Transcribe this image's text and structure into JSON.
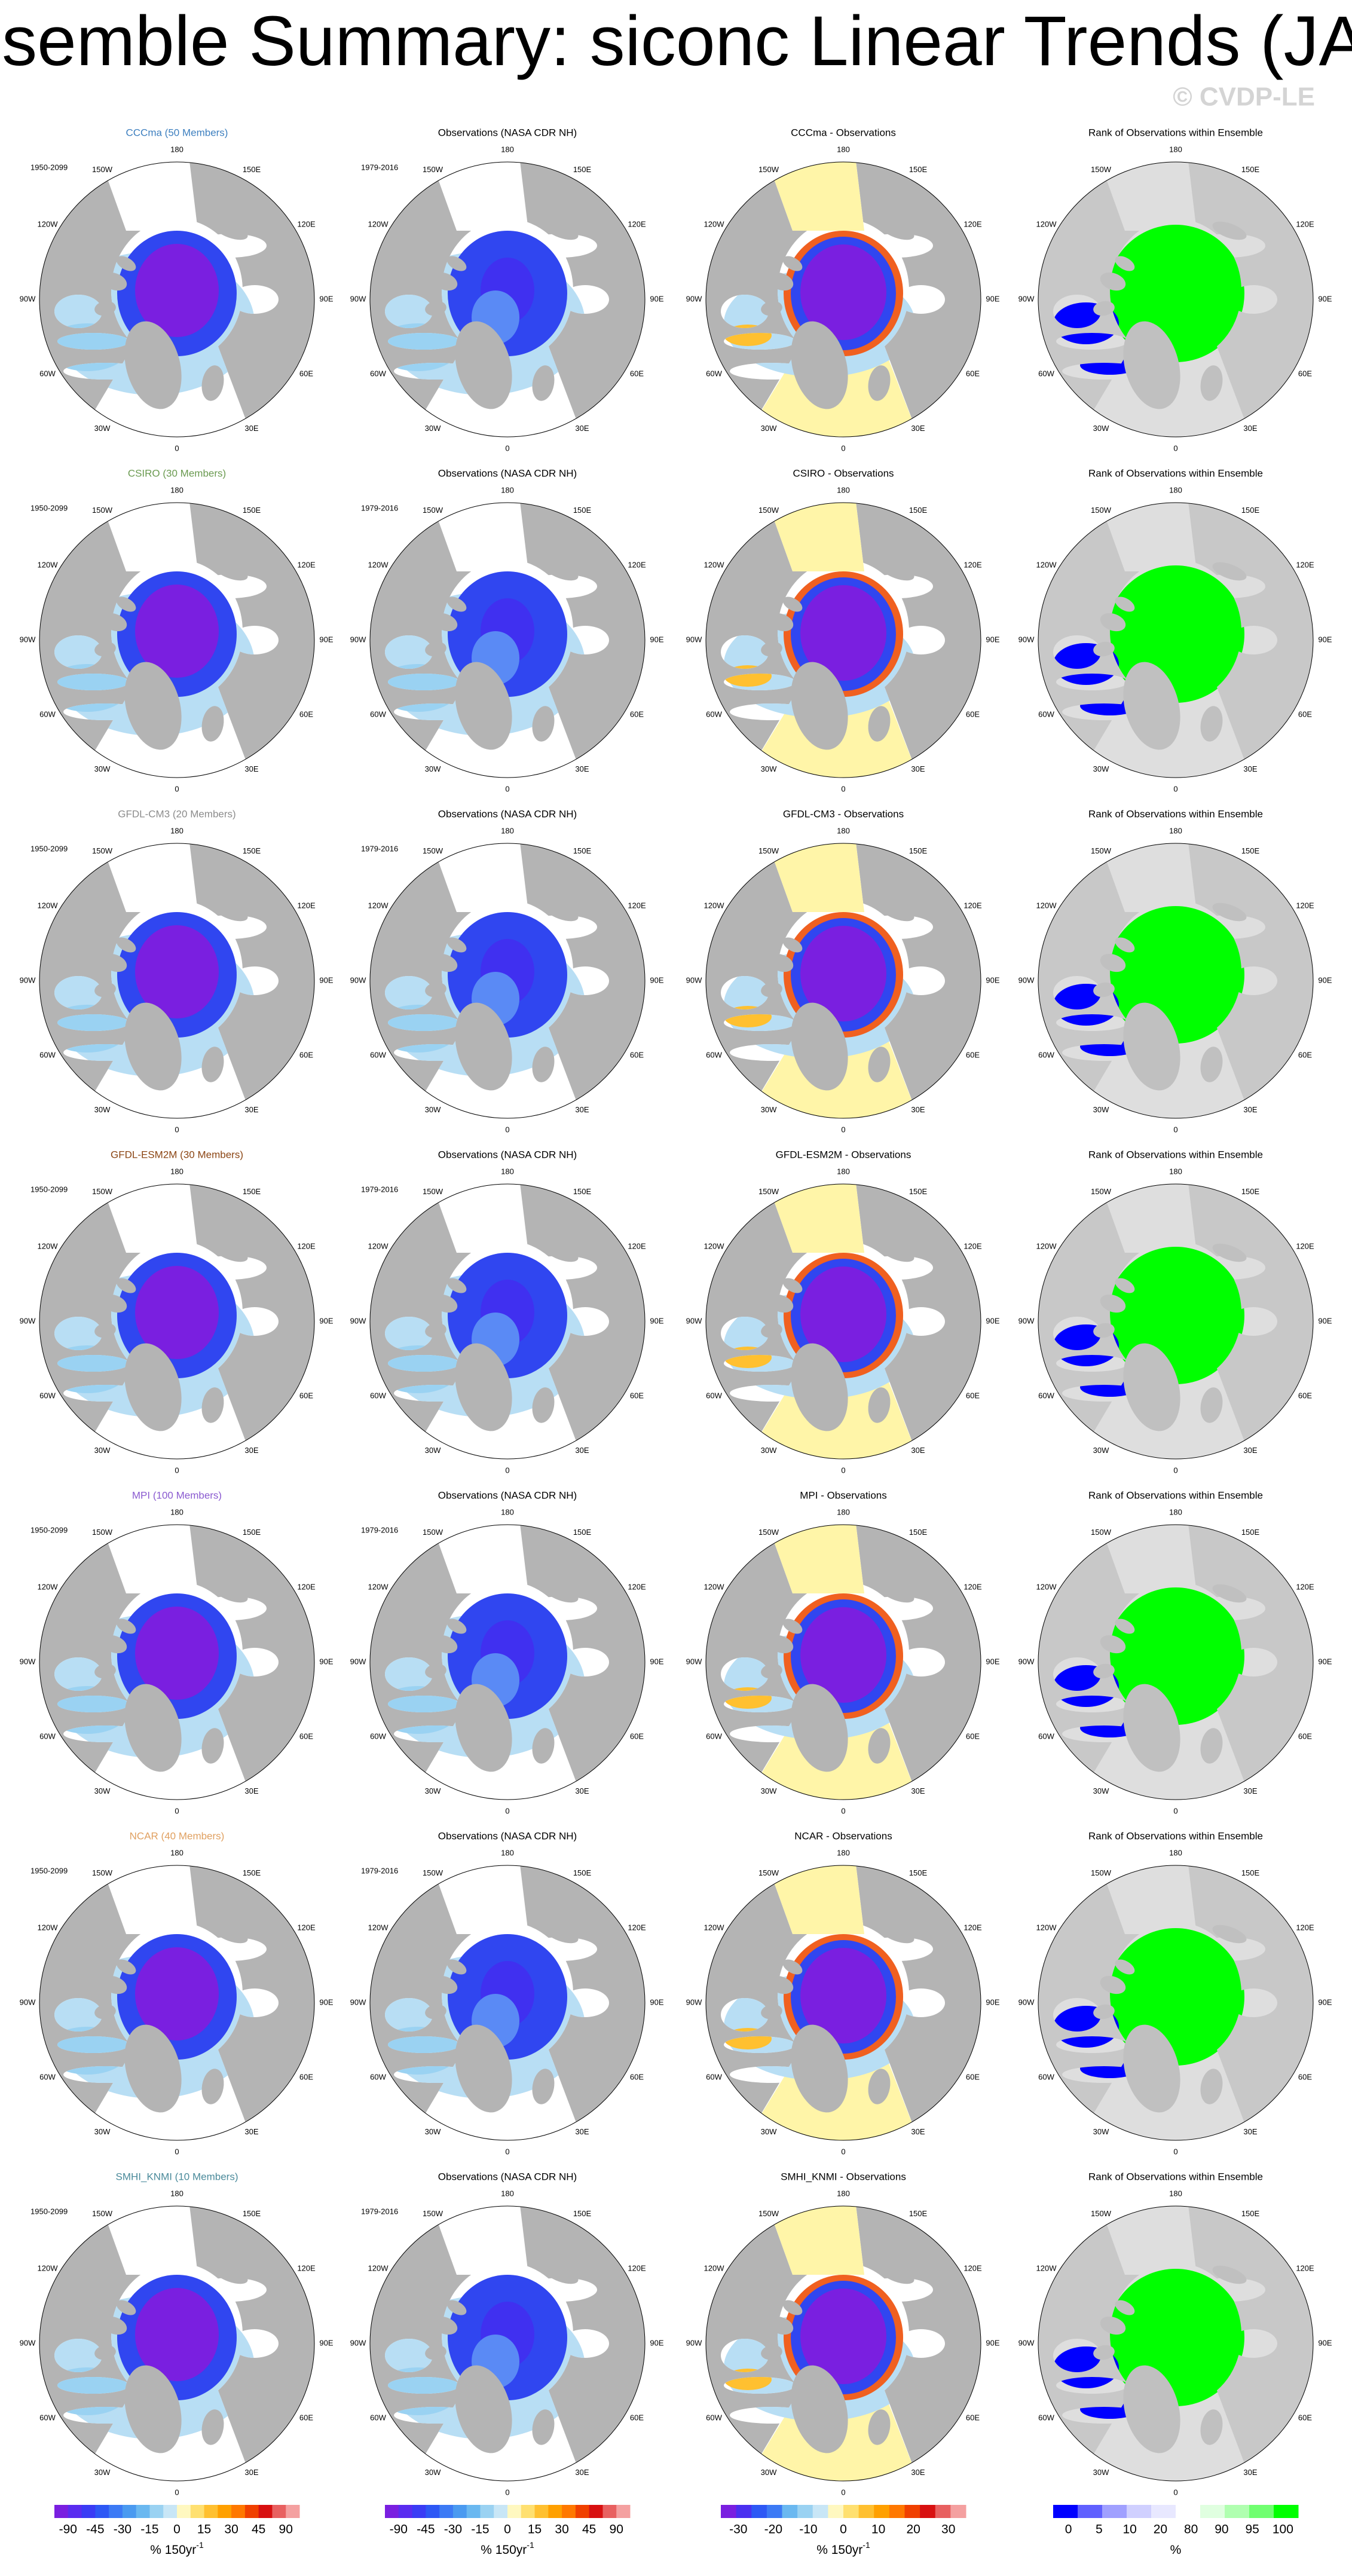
{
  "header": {
    "title": "Ensemble Summary: siconc Linear Trends (JAS)",
    "watermark": "© CVDP-LE"
  },
  "rows": [
    {
      "model": "CCCma (50 Members)",
      "model_color": "#3d7fbf",
      "model_period": "1950-2099",
      "obs": "Observations (NASA CDR NH)",
      "obs_period": "1979-2016",
      "diff": "CCCma - Observations",
      "rank": "Rank of Observations within Ensemble"
    },
    {
      "model": "CSIRO (30 Members)",
      "model_color": "#6a9a50",
      "model_period": "1950-2099",
      "obs": "Observations (NASA CDR NH)",
      "obs_period": "1979-2016",
      "diff": "CSIRO - Observations",
      "rank": "Rank of Observations within Ensemble"
    },
    {
      "model": "GFDL-CM3 (20 Members)",
      "model_color": "#8c8c8c",
      "model_period": "1950-2099",
      "obs": "Observations (NASA CDR NH)",
      "obs_period": "1979-2016",
      "diff": "GFDL-CM3 - Observations",
      "rank": "Rank of Observations within Ensemble"
    },
    {
      "model": "GFDL-ESM2M (30 Members)",
      "model_color": "#8b4513",
      "model_period": "1950-2099",
      "obs": "Observations (NASA CDR NH)",
      "obs_period": "1979-2016",
      "diff": "GFDL-ESM2M - Observations",
      "rank": "Rank of Observations within Ensemble"
    },
    {
      "model": "MPI (100 Members)",
      "model_color": "#8a5ad0",
      "model_period": "1950-2099",
      "obs": "Observations (NASA CDR NH)",
      "obs_period": "1979-2016",
      "diff": "MPI - Observations",
      "rank": "Rank of Observations within Ensemble"
    },
    {
      "model": "NCAR (40 Members)",
      "model_color": "#e0a060",
      "model_period": "1950-2099",
      "obs": "Observations (NASA CDR NH)",
      "obs_period": "1979-2016",
      "diff": "NCAR - Observations",
      "rank": "Rank of Observations within Ensemble"
    },
    {
      "model": "SMHI_KNMI (10 Members)",
      "model_color": "#4a8a9a",
      "model_period": "1950-2099",
      "obs": "Observations (NASA CDR NH)",
      "obs_period": "1979-2016",
      "diff": "SMHI_KNMI - Observations",
      "rank": "Rank of Observations within Ensemble"
    }
  ],
  "lon_labels": [
    "180",
    "150E",
    "120E",
    "90E",
    "60E",
    "30E",
    "0",
    "30W",
    "60W",
    "90W",
    "120W",
    "150W"
  ],
  "colorbars": [
    {
      "labels": [
        -90,
        -45,
        -30,
        -15,
        0,
        15,
        30,
        45,
        90
      ],
      "unit": "% 150yr",
      "unit_sup": "-1",
      "colors": [
        "#7a1fe0",
        "#5a2cf0",
        "#3a3cf5",
        "#2d58f5",
        "#3c7af5",
        "#4a9af0",
        "#6ab8f0",
        "#9ad2f2",
        "#c8e6f6",
        "#fff8c0",
        "#ffe070",
        "#ffc030",
        "#ffa000",
        "#ff7800",
        "#f04000",
        "#d81010",
        "#e86060",
        "#f4a0a0"
      ]
    },
    {
      "labels": [
        -90,
        -45,
        -30,
        -15,
        0,
        15,
        30,
        45,
        90
      ],
      "unit": "% 150yr",
      "unit_sup": "-1",
      "colors": [
        "#7a1fe0",
        "#5a2cf0",
        "#3a3cf5",
        "#2d58f5",
        "#3c7af5",
        "#4a9af0",
        "#6ab8f0",
        "#9ad2f2",
        "#c8e6f6",
        "#fff8c0",
        "#ffe070",
        "#ffc030",
        "#ffa000",
        "#ff7800",
        "#f04000",
        "#d81010",
        "#e86060",
        "#f4a0a0"
      ]
    },
    {
      "labels": [
        -30,
        -20,
        -10,
        0,
        10,
        20,
        30
      ],
      "unit": "% 150yr",
      "unit_sup": "-1",
      "colors": [
        "#7a1fe0",
        "#4a30f0",
        "#2d58f5",
        "#3c7af5",
        "#6ab8f0",
        "#9ad2f2",
        "#c8e6f6",
        "#fff8c0",
        "#ffe070",
        "#ffc030",
        "#ffa000",
        "#ff7800",
        "#f04000",
        "#d81010",
        "#e86060",
        "#f4a0a0"
      ]
    },
    {
      "labels": [
        0,
        5,
        10,
        20,
        80,
        90,
        95,
        100
      ],
      "unit": "%",
      "colors": [
        "#0000ff",
        "#6060ff",
        "#a0a0ff",
        "#d0d0ff",
        "#e8e8ff",
        "#ffffff",
        "#e0ffe0",
        "#b0ffb0",
        "#70ff70",
        "#00ff00"
      ]
    }
  ]
}
